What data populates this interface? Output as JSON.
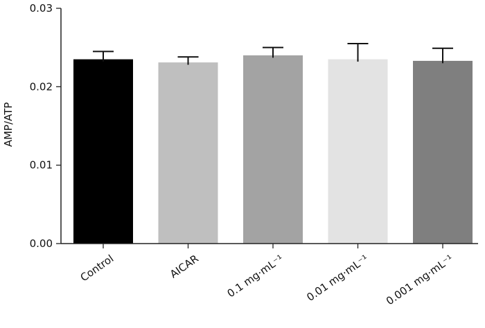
{
  "chart_data": {
    "type": "bar",
    "title": "",
    "xlabel": "",
    "ylabel": "AMP/ATP",
    "categories": [
      "Control",
      "AICAR",
      "0.1 mg·mL⁻¹",
      "0.01 mg·mL⁻¹",
      "0.001 mg·mL⁻¹"
    ],
    "values": [
      0.0235,
      0.0231,
      0.024,
      0.0235,
      0.0233
    ],
    "errors": [
      0.001,
      0.0007,
      0.001,
      0.002,
      0.0016
    ],
    "bar_colors": [
      "#000000",
      "#bfbfbf",
      "#a3a3a3",
      "#e3e3e3",
      "#7f7f7f"
    ],
    "ylim": [
      0,
      0.03
    ],
    "yticks": [
      "0.00",
      "0.01",
      "0.02",
      "0.03"
    ],
    "yticks_values": [
      0,
      0.01,
      0.02,
      0.03
    ],
    "grid": false,
    "legend": "none"
  }
}
